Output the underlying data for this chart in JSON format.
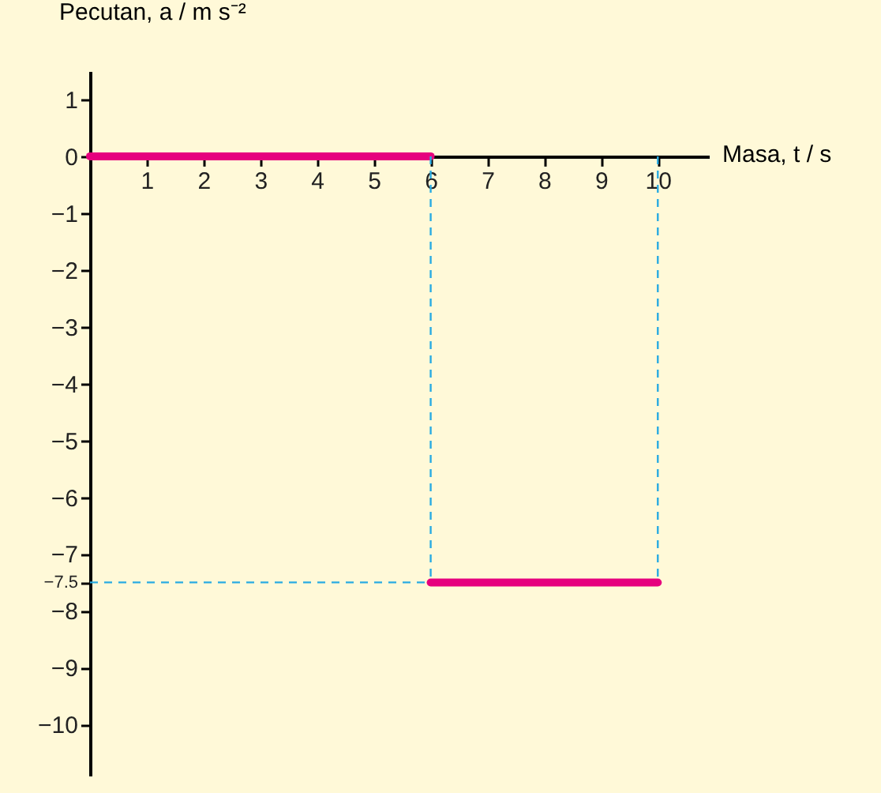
{
  "chart_data": {
    "type": "line",
    "xlabel": "Masa, t / s",
    "ylabel": "Pecutan, a / m s⁻²",
    "series": [
      {
        "color": "#e6007e",
        "x": [
          0,
          6
        ],
        "values": [
          0,
          0
        ]
      },
      {
        "color": "#e6007e",
        "x": [
          6,
          10
        ],
        "values": [
          -7.5,
          -7.5
        ]
      }
    ],
    "xlim": [
      0,
      10.9
    ],
    "ylim": [
      -10.9,
      1.5
    ],
    "xticks": [
      1,
      2,
      3,
      4,
      5,
      6,
      7,
      8,
      9,
      10
    ],
    "yticks": [
      1,
      0,
      -1,
      -2,
      -3,
      -4,
      -5,
      -6,
      -7,
      -7.5,
      -8,
      -9,
      -10
    ],
    "ref_lines": [
      {
        "axis": "x",
        "value": 6,
        "color": "#29abe2",
        "line_style": "dashed"
      },
      {
        "axis": "x",
        "value": 10,
        "color": "#29abe2",
        "line_style": "dashed"
      },
      {
        "axis": "y",
        "value": -7.5,
        "color": "#29abe2",
        "line_style": "dashed"
      }
    ],
    "grid": false,
    "marker": "none",
    "line_style": "solid"
  }
}
